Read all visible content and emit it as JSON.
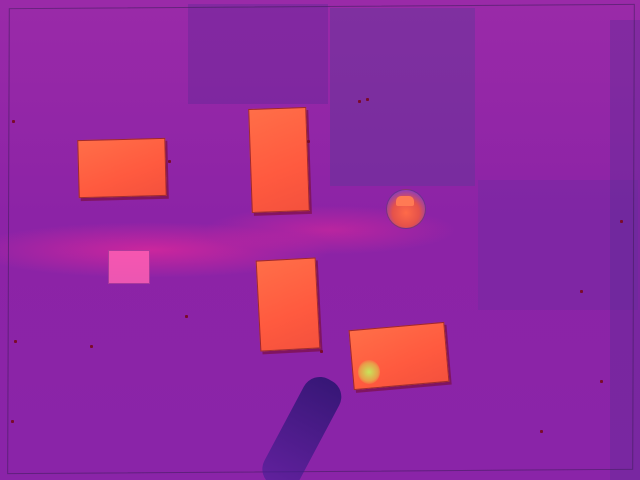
{
  "scene": {
    "colors": {
      "surface": "#8c23a6",
      "block": "#ff5a3f",
      "pink_marker": "#ff5fb4",
      "probe_tip": "#c8e55a"
    },
    "objects": [
      {
        "kind": "block",
        "name": "orange-block-horizontal-left"
      },
      {
        "kind": "block",
        "name": "orange-block-vertical-top"
      },
      {
        "kind": "block",
        "name": "orange-block-vertical-bottom"
      },
      {
        "kind": "block",
        "name": "orange-block-horizontal-right"
      },
      {
        "kind": "marker",
        "name": "pink-square-marker"
      },
      {
        "kind": "marker",
        "name": "dome-marker"
      },
      {
        "kind": "tool",
        "name": "probe-arm"
      }
    ]
  }
}
